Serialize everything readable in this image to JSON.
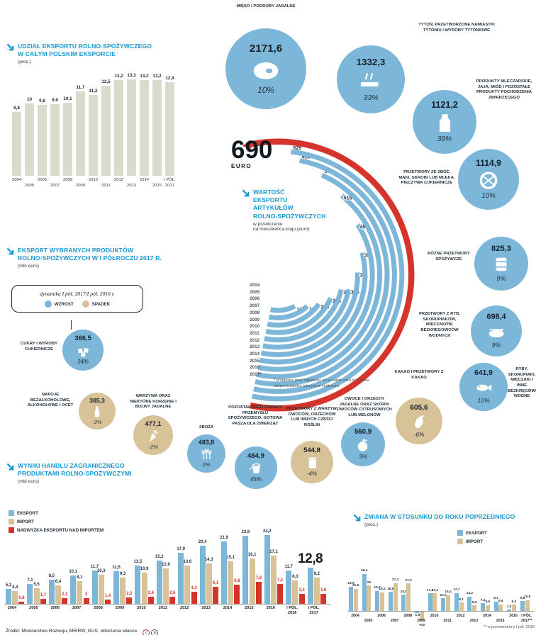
{
  "colors": {
    "accent_blue": "#1898d4",
    "circle_blue": "#7cb6d9",
    "tan": "#d8c298",
    "red": "#d5342b",
    "bar_beige": "#dbdbcd",
    "dark": "#1f2d38"
  },
  "sections": {
    "share": {
      "title": "UDZIAŁ EKSPORTU ROLNO-SPOŻYWCZEGO\nW CAŁYM POLSKIM EKSPORCIE",
      "unit": "(proc.)"
    },
    "products": {
      "title": "EKSPORT WYBRANYCH PRODUKTÓW\nROLNO-SPOŻYWCZYCH W I PÓŁROCZU 2017 R.",
      "unit": "(mln euro)"
    },
    "trade": {
      "title": "WYNIKI  HANDLU ZAGRANICZNEGO\nPRODUKTAMI ROLNO-SPOŻYWCZYMI",
      "unit": "(mld euro)"
    },
    "yoy": {
      "title": "ZMIANA W STOSUNKU DO ROKU POPRZEDNIEGO",
      "unit": "(proc.)"
    }
  },
  "per_capita": {
    "title": "WARTOŚĆ\nEKSPORTU\nARTYKUŁÓW\nROLNO-SPOŻYWCZYCH",
    "subtitle": "w przeliczeniu\nna mieszkańca kraju (euro)",
    "headline_value": "690",
    "headline_unit": "EURO",
    "footnote": "* prognoza, przy założeniu, że w całym roku dynamika eksportu będzie taka jak w I półroczu"
  },
  "dynamics_legend": {
    "title": "dynamika I pół. 2017/I pół. 2016 r.",
    "up": "WZROST",
    "down": "SPADEK"
  },
  "trade_legend": [
    "EKSPORT",
    "IMPORT",
    "NADWYŻKA EKSPORTU NAD IMPORTEM"
  ],
  "yoy_legend": [
    "EKSPORT",
    "IMPORT"
  ],
  "footer": {
    "source": "Źródło: Ministerstwo Rozwoju, MRiRW, GUS, obliczenia własne",
    "license": "CC BY",
    "footnote": "** w porównaniu z I pół. 2016"
  },
  "products": [
    {
      "label": "MIĘSO I PODROBY JADALNE",
      "value": "2171,6",
      "pct": "10%",
      "trend": "up",
      "icon": "meat-icon"
    },
    {
      "label": "TYTOŃ, PRZETWORZONE NAMIASTKI TYTONIU I WYROBY TYTONIOWE",
      "value": "1332,3",
      "pct": "33%",
      "trend": "up",
      "icon": "cigarette-icon"
    },
    {
      "label": "PRODUKTY MLECZARSKIE, JAJA, MIÓD I POZOSTAŁE PRODUKTY POCHODZENIA ZWIERZĘCEGO",
      "value": "1121,2",
      "pct": "39%",
      "trend": "up",
      "icon": "dairy-icon"
    },
    {
      "label": "PRZETWORY ZE ZBÓŻ, MĄKI, SKROBI LUB MLEKA, PIECZYWA CUKIERNICZE",
      "value": "1114,9",
      "pct": "10%",
      "trend": "up",
      "icon": "pretzel-icon"
    },
    {
      "label": "RÓŻNE PRZETWORY SPOŻYWCZE",
      "value": "825,3",
      "pct": "9%",
      "trend": "up",
      "icon": "barrel-icon"
    },
    {
      "label": "PRZETWORY Z RYB, SKORUPIAKÓW, MIĘCZAKÓW, BEZKRĘGOWCÓW WODNYCH",
      "value": "698,4",
      "pct": "9%",
      "trend": "up",
      "icon": "fish-can-icon"
    },
    {
      "label": "RYBY, SKORUPIAKI, MIĘCZAKI I INNE BEZKRĘGOWCE WODNE",
      "value": "641,9",
      "pct": "10%",
      "trend": "up",
      "icon": "fish-icon"
    },
    {
      "label": "KAKAO I PRZETWORY Z KAKAO",
      "value": "605,6",
      "pct": "-6%",
      "trend": "down",
      "icon": "cocoa-icon"
    },
    {
      "label": "OWOCE I ORZECHY JADALNE ORAZ SKÓRKI OWOCÓW CYTRUSOWYCH LUB MELONÓW",
      "value": "560,9",
      "pct": "3%",
      "trend": "up",
      "icon": "fruit-icon"
    },
    {
      "label": "PRZETWORY Z WARZYW, OWOCÓW, ORZECHÓW LUB INNYCH CZĘŚCI ROŚLIN",
      "value": "544,8",
      "pct": "-4%",
      "trend": "down",
      "icon": "jar-icon"
    },
    {
      "label": "POZOSTAŁOŚCI I ODPADY PRZEMYSŁU SPOŻYWCZEGO, GOTOWA PASZA DLA ZWIERZĄT",
      "value": "484,9",
      "pct": "45%",
      "trend": "up",
      "icon": "bucket-icon"
    },
    {
      "label": "ZBOŻA",
      "value": "483,8",
      "pct": "2%",
      "trend": "up",
      "icon": "wheat-icon"
    },
    {
      "label": "WARZYWA ORAZ NIEKTÓRE KORZENIE I BULWY JADALNE",
      "value": "477,1",
      "pct": "-2%",
      "trend": "down",
      "icon": "carrot-icon"
    },
    {
      "label": "NAPOJE BEZALKOHOLOWE, ALKOHOLOWE I OCET",
      "value": "385,3",
      "pct": "-2%",
      "trend": "down",
      "icon": "bottle-icon"
    },
    {
      "label": "CUKRY I WYROBY CUKIERNICZE",
      "value": "366,5",
      "pct": "34%",
      "trend": "up",
      "icon": "sugar-icon"
    }
  ],
  "chart_data": [
    {
      "id": "share",
      "type": "bar",
      "title": "UDZIAŁ EKSPORTU ROLNO-SPOŻYWCZEGO W CAŁYM POLSKIM EKSPORCIE",
      "xlabel": "",
      "ylabel": "proc.",
      "ylim": [
        0,
        14
      ],
      "grid": false,
      "categories": [
        "2004",
        "2005",
        "2006",
        "2007",
        "2008",
        "2009",
        "2010",
        "2011",
        "2012",
        "2013",
        "2014",
        "2015",
        "I PÓŁ. 2017"
      ],
      "values": [
        8.8,
        10,
        9.8,
        9.9,
        10.1,
        11.7,
        11.2,
        12.5,
        13.2,
        13.3,
        13.2,
        13.2,
        12.9
      ]
    },
    {
      "id": "per_capita",
      "type": "radial-arcs",
      "title": "WARTOŚĆ EKSPORTU ARTYKUŁÓW ROLNO-SPOŻYWCZYCH w przeliczeniu na mieszkańca kraju (euro)",
      "categories": [
        "2004",
        "2005",
        "2006",
        "2007",
        "2008",
        "2009",
        "2010",
        "2011",
        "2012",
        "2013",
        "2014",
        "2015",
        "2016"
      ],
      "values": [
        137,
        187,
        225,
        265,
        301,
        306,
        351,
        395,
        454,
        518,
        569,
        613,
        629
      ],
      "forecast_category": "2017*",
      "forecast_value": 690,
      "note": "* prognoza, przy założeniu, że w całym roku dynamika eksportu będzie taka jak w I półroczu"
    },
    {
      "id": "trade",
      "type": "grouped-bar",
      "title": "WYNIKI HANDLU ZAGRANICZNEGO PRODUKTAMI ROLNO-SPOŻYWCZYMI",
      "xlabel": "",
      "ylabel": "mld euro",
      "ylim": [
        0,
        26
      ],
      "grid": false,
      "categories": [
        "2004",
        "2005",
        "2006",
        "2007",
        "2008",
        "2009",
        "2010",
        "2011",
        "2012",
        "2013",
        "2014",
        "2015",
        "2016",
        "I PÓŁ. 2016",
        "I PÓŁ. 2017"
      ],
      "series": [
        {
          "name": "EKSPORT",
          "key": "eksport",
          "color": "#7cb6d9",
          "values": [
            5.2,
            7.1,
            8.5,
            10.1,
            11.7,
            11.5,
            13.5,
            15.2,
            17.9,
            20.4,
            21.9,
            23.9,
            24.2,
            11.7,
            12.8
          ]
        },
        {
          "name": "IMPORT",
          "key": "import",
          "color": "#d8c298",
          "values": [
            4.4,
            5.5,
            6.4,
            8.1,
            10.3,
            9.3,
            10.9,
            12.6,
            13.6,
            14.3,
            15.1,
            16.1,
            17.1,
            8.3,
            9.2
          ]
        },
        {
          "name": "NADWYŻKA EKSPORTU NAD IMPORTEM",
          "key": "nadwyzka",
          "color": "#d5342b",
          "values": [
            0.8,
            1.7,
            2.1,
            2,
            1.4,
            2.2,
            2.6,
            2.6,
            4.3,
            6.1,
            6.8,
            7.8,
            7.1,
            3.4,
            3.6
          ]
        }
      ],
      "highlight": {
        "series": "EKSPORT",
        "category": "I PÓŁ. 2017",
        "value": 12.8
      }
    },
    {
      "id": "yoy",
      "type": "grouped-bar",
      "title": "ZMIANA W STOSUNKU DO ROKU POPRZEDNIEGO",
      "xlabel": "",
      "ylabel": "proc.",
      "ylim": [
        -12,
        40
      ],
      "grid": false,
      "categories": [
        "2004",
        "2005",
        "2006",
        "2007",
        "2008",
        "2009",
        "2010",
        "2011",
        "2012",
        "2013",
        "2014",
        "2015",
        "2016",
        "I PÓŁ. 2017**"
      ],
      "series": [
        {
          "name": "EKSPORT",
          "key": "eksport",
          "color": "#7cb6d9",
          "values": [
            23.9,
            36.4,
            19.7,
            18.8,
            15.8,
            -1.9,
            17.4,
            12.4,
            17.7,
            14.2,
            7.4,
            9.1,
            1.2,
            9.6
          ]
        },
        {
          "name": "IMPORT",
          "key": "import",
          "color": "#d8c298",
          "values": [
            21.9,
            25,
            18.2,
            27.3,
            27.2,
            -9.8,
            17.2,
            15.4,
            8.1,
            5.5,
            5.6,
            6.6,
            6.2,
            10.8
          ]
        }
      ],
      "note": "** w porównaniu z I pół. 2016"
    }
  ]
}
